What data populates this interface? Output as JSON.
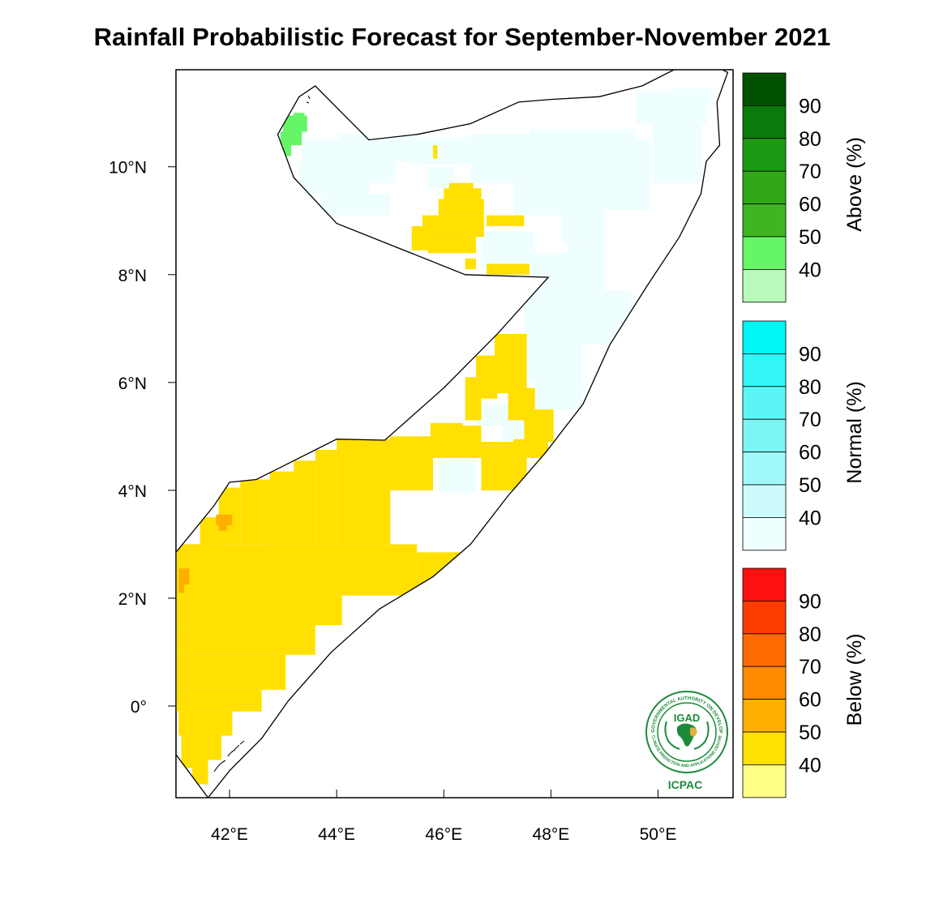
{
  "title": "Rainfall Probabilistic Forecast for September-November 2021",
  "map": {
    "lon_range": [
      41.0,
      51.4
    ],
    "lat_range": [
      -1.7,
      11.8
    ],
    "x_ticks": [
      {
        "lon": 42,
        "label": "42°E"
      },
      {
        "lon": 44,
        "label": "44°E"
      },
      {
        "lon": 46,
        "label": "46°E"
      },
      {
        "lon": 48,
        "label": "48°E"
      },
      {
        "lon": 50,
        "label": "50°E"
      }
    ],
    "y_ticks": [
      {
        "lat": 10,
        "label": "10°N"
      },
      {
        "lat": 8,
        "label": "8°N"
      },
      {
        "lat": 6,
        "label": "6°N"
      },
      {
        "lat": 4,
        "label": "4°N"
      },
      {
        "lat": 2,
        "label": "2°N"
      },
      {
        "lat": 0,
        "label": "0°"
      }
    ],
    "boundary": [
      [
        42.9,
        10.6
      ],
      [
        43.3,
        11.3
      ],
      [
        43.6,
        11.5
      ],
      [
        44.2,
        10.9
      ],
      [
        44.6,
        10.5
      ],
      [
        45.5,
        10.6
      ],
      [
        46.5,
        10.8
      ],
      [
        47.4,
        11.2
      ],
      [
        48.0,
        11.25
      ],
      [
        48.9,
        11.3
      ],
      [
        49.7,
        11.5
      ],
      [
        50.3,
        11.8
      ],
      [
        51.0,
        11.9
      ],
      [
        51.3,
        11.75
      ],
      [
        51.1,
        11.2
      ],
      [
        51.15,
        10.4
      ],
      [
        50.9,
        10.1
      ],
      [
        50.8,
        9.5
      ],
      [
        50.4,
        8.7
      ],
      [
        49.8,
        7.8
      ],
      [
        49.1,
        6.7
      ],
      [
        48.6,
        5.6
      ],
      [
        47.9,
        4.7
      ],
      [
        47.2,
        3.9
      ],
      [
        46.5,
        3.0
      ],
      [
        45.8,
        2.4
      ],
      [
        44.8,
        1.8
      ],
      [
        43.9,
        1.0
      ],
      [
        43.1,
        0.1
      ],
      [
        42.6,
        -0.6
      ],
      [
        42.0,
        -1.2
      ],
      [
        41.6,
        -1.7
      ],
      [
        41.0,
        -0.9
      ],
      [
        41.0,
        2.85
      ],
      [
        41.7,
        3.7
      ],
      [
        42.0,
        4.15
      ],
      [
        42.5,
        4.2
      ],
      [
        43.0,
        4.45
      ],
      [
        43.6,
        4.75
      ],
      [
        44.0,
        4.95
      ],
      [
        44.9,
        4.93
      ],
      [
        46.0,
        5.9
      ],
      [
        47.0,
        6.9
      ],
      [
        47.95,
        7.95
      ],
      [
        46.4,
        8.0
      ],
      [
        44.0,
        8.95
      ],
      [
        43.2,
        9.8
      ],
      [
        42.9,
        10.6
      ]
    ],
    "above_40_cells": [
      [
        43.2,
        11.0,
        43.4,
        10.95
      ],
      [
        43.0,
        10.95,
        43.45,
        10.65
      ],
      [
        42.95,
        10.65,
        43.35,
        10.4
      ],
      [
        43.0,
        10.4,
        43.15,
        10.2
      ]
    ],
    "normal_40_cells": [
      [
        43.35,
        10.5,
        44.05,
        10.1
      ],
      [
        43.3,
        10.1,
        44.6,
        9.5
      ],
      [
        43.7,
        9.5,
        45.0,
        9.1
      ],
      [
        44.05,
        10.6,
        45.4,
        10.1
      ],
      [
        44.5,
        10.1,
        45.1,
        9.7
      ],
      [
        45.35,
        10.55,
        47.0,
        10.05
      ],
      [
        46.5,
        10.6,
        48.3,
        9.7
      ],
      [
        45.7,
        10.0,
        46.2,
        9.6
      ],
      [
        47.3,
        9.7,
        48.2,
        9.1
      ],
      [
        47.6,
        10.7,
        49.6,
        10.2
      ],
      [
        48.2,
        10.2,
        49.0,
        8.6
      ],
      [
        49.0,
        10.5,
        49.85,
        9.2
      ],
      [
        49.6,
        11.4,
        50.9,
        10.8
      ],
      [
        49.9,
        10.8,
        50.8,
        9.7
      ],
      [
        50.2,
        11.45,
        51.0,
        11.15
      ],
      [
        46.7,
        8.8,
        47.7,
        8.1
      ],
      [
        47.2,
        8.4,
        48.7,
        7.9
      ],
      [
        47.5,
        7.9,
        48.3,
        6.9
      ],
      [
        48.0,
        7.7,
        49.5,
        6.7
      ],
      [
        48.3,
        8.6,
        49.0,
        7.2
      ],
      [
        47.0,
        6.9,
        48.6,
        6.0
      ],
      [
        47.7,
        6.0,
        48.6,
        5.5
      ],
      [
        46.6,
        5.6,
        47.4,
        5.2
      ],
      [
        47.1,
        5.3,
        47.5,
        4.9
      ],
      [
        45.9,
        4.6,
        46.6,
        3.95
      ],
      [
        45.6,
        2.85,
        45.65,
        2.7
      ]
    ],
    "below_40_cells": [
      [
        45.8,
        10.4,
        45.88,
        10.15
      ],
      [
        46.1,
        9.7,
        46.55,
        9.6
      ],
      [
        46.0,
        9.6,
        46.7,
        9.4
      ],
      [
        45.9,
        9.4,
        46.75,
        9.1
      ],
      [
        45.6,
        9.1,
        46.75,
        8.7
      ],
      [
        45.4,
        8.9,
        45.75,
        8.45
      ],
      [
        45.7,
        8.7,
        46.6,
        8.4
      ],
      [
        46.8,
        9.1,
        47.5,
        8.9
      ],
      [
        46.8,
        8.2,
        47.6,
        8.0
      ],
      [
        46.4,
        8.3,
        46.6,
        8.1
      ],
      [
        46.15,
        8.65,
        46.4,
        8.4
      ],
      [
        46.95,
        6.9,
        47.55,
        5.8
      ],
      [
        47.2,
        5.9,
        47.7,
        5.3
      ],
      [
        46.6,
        6.5,
        47.0,
        5.7
      ],
      [
        46.4,
        6.1,
        46.7,
        5.3
      ],
      [
        47.5,
        5.5,
        48.05,
        4.9
      ],
      [
        47.3,
        4.95,
        47.95,
        4.6
      ],
      [
        46.7,
        4.9,
        47.55,
        4.0
      ],
      [
        46.3,
        5.2,
        46.7,
        4.6
      ],
      [
        45.75,
        5.25,
        46.35,
        4.6
      ],
      [
        45.0,
        5.0,
        45.8,
        4.0
      ],
      [
        44.0,
        4.95,
        45.0,
        3.0
      ],
      [
        43.6,
        4.75,
        44.0,
        3.0
      ],
      [
        43.2,
        4.55,
        43.6,
        3.0
      ],
      [
        42.75,
        4.35,
        43.2,
        3.0
      ],
      [
        42.2,
        4.2,
        42.75,
        3.0
      ],
      [
        41.8,
        4.05,
        42.2,
        3.0
      ],
      [
        41.45,
        3.5,
        41.8,
        3.0
      ],
      [
        41.0,
        3.0,
        41.45,
        2.85
      ],
      [
        41.0,
        3.0,
        45.5,
        2.05
      ],
      [
        45.5,
        2.85,
        46.6,
        2.35
      ],
      [
        45.35,
        2.35,
        45.95,
        2.05
      ],
      [
        41.0,
        2.05,
        44.1,
        1.5
      ],
      [
        41.0,
        1.5,
        43.6,
        0.95
      ],
      [
        41.0,
        0.95,
        43.05,
        0.3
      ],
      [
        41.0,
        0.3,
        42.6,
        -0.1
      ],
      [
        41.05,
        -0.1,
        42.05,
        -0.55
      ],
      [
        41.1,
        -0.55,
        41.6,
        -1.15
      ],
      [
        41.3,
        -1.15,
        41.6,
        -1.45
      ],
      [
        41.6,
        -0.55,
        41.85,
        -1.0
      ]
    ],
    "below_50_cells": [
      [
        41.75,
        3.55,
        42.05,
        3.35
      ],
      [
        41.8,
        3.35,
        41.95,
        3.25
      ],
      [
        41.05,
        2.55,
        41.25,
        2.25
      ],
      [
        41.05,
        2.25,
        41.15,
        2.1
      ]
    ]
  },
  "colorbars": [
    {
      "title": "Above (%)",
      "colors": [
        "#005000",
        "#0a7a0a",
        "#1d9a14",
        "#31a71a",
        "#3fb524",
        "#66f566",
        "#b9f9b9"
      ],
      "labels": [
        "90",
        "80",
        "70",
        "60",
        "50",
        "40"
      ]
    },
    {
      "title": "Normal (%)",
      "colors": [
        "#00f5f5",
        "#33f5f5",
        "#5cf5f5",
        "#7ef5f5",
        "#a0f9f9",
        "#cdfbfb",
        "#effefe"
      ],
      "labels": [
        "90",
        "80",
        "70",
        "60",
        "50",
        "40"
      ]
    },
    {
      "title": "Below (%)",
      "colors": [
        "#ff1010",
        "#ff3c00",
        "#ff6a00",
        "#ff8c00",
        "#ffaf00",
        "#ffe000",
        "#ffff88"
      ],
      "labels": [
        "90",
        "80",
        "70",
        "60",
        "50",
        "40"
      ]
    }
  ],
  "logo": {
    "name": "IGAD",
    "org": "ICPAC",
    "ring_top": "INTERGOVERNMENTAL AUTHORITY ON DEVELOPMENT",
    "ring_bottom": "CLIMATE PREDICTION AND APPLICATIONS CENTRE"
  }
}
